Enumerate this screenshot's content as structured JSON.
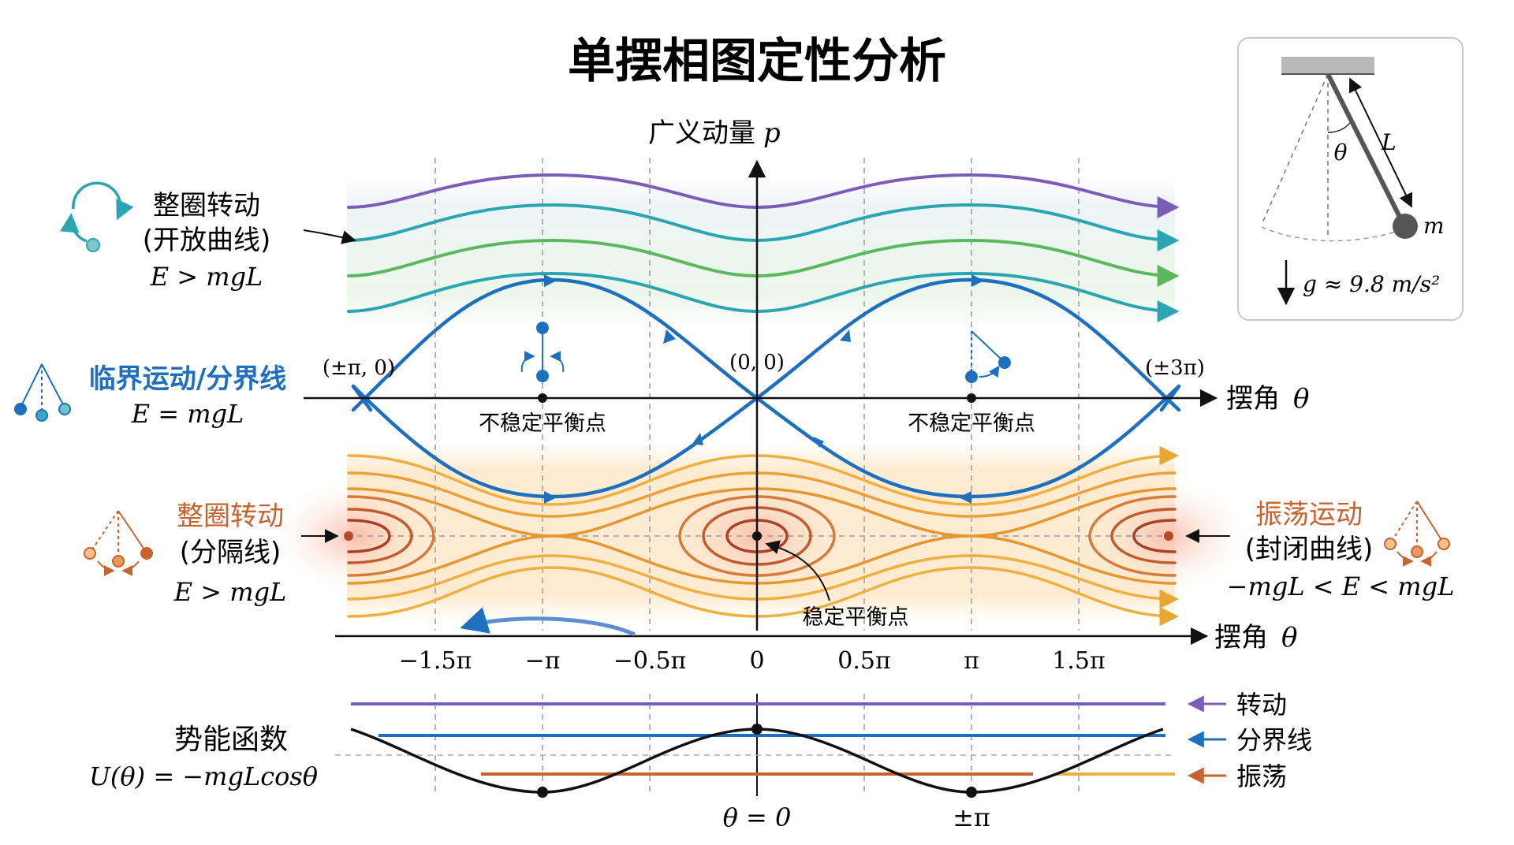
{
  "title": "单摆相图定性分析",
  "axes": {
    "p_label": "广义动量",
    "p_symbol": "p",
    "theta_label": "摆角",
    "theta_symbol": "θ",
    "ticks": [
      "−1.5π",
      "−π",
      "−0.5π",
      "0",
      "0.5π",
      "π",
      "1.5π"
    ]
  },
  "point_labels": {
    "left_saddle": "(±π, 0)",
    "origin": "(0, 0)",
    "right_saddle": "(±3π)"
  },
  "equilibria": {
    "unstable": "不稳定平衡点",
    "stable": "稳定平衡点"
  },
  "legend_left": {
    "rotation_title": "整圈转动",
    "rotation_sub": "(开放曲线)",
    "rotation_eq": "E > mgL",
    "critical_title": "临界运动/分界线",
    "critical_eq": "E = mgL",
    "lower_title": "整圈转动",
    "lower_sub": "(分隔线)",
    "lower_eq": "E > mgL"
  },
  "legend_right": {
    "osc_title": "振荡运动",
    "osc_sub": "(封闭曲线)",
    "osc_eq": "−mgL < E < mgL"
  },
  "inset": {
    "length": "L",
    "angle": "θ",
    "mass": "m",
    "gravity": "g ≈ 9.8 m/s²"
  },
  "potential": {
    "title": "势能函数",
    "formula": "U(θ) = −mgLcosθ",
    "x_min_label": "θ = 0",
    "x_max_label": "±π",
    "legend": [
      "转动",
      "分界线",
      "振荡"
    ]
  },
  "colors": {
    "rotation": "#7b5cb8",
    "separatrix": "#1f6fbf",
    "oscillation_inner": "#b5482a",
    "oscillation_outer": "#e8a632",
    "open_teal": "#2ba5b2",
    "open_green": "#5cb85c",
    "accent_orange": "#c8632f"
  }
}
